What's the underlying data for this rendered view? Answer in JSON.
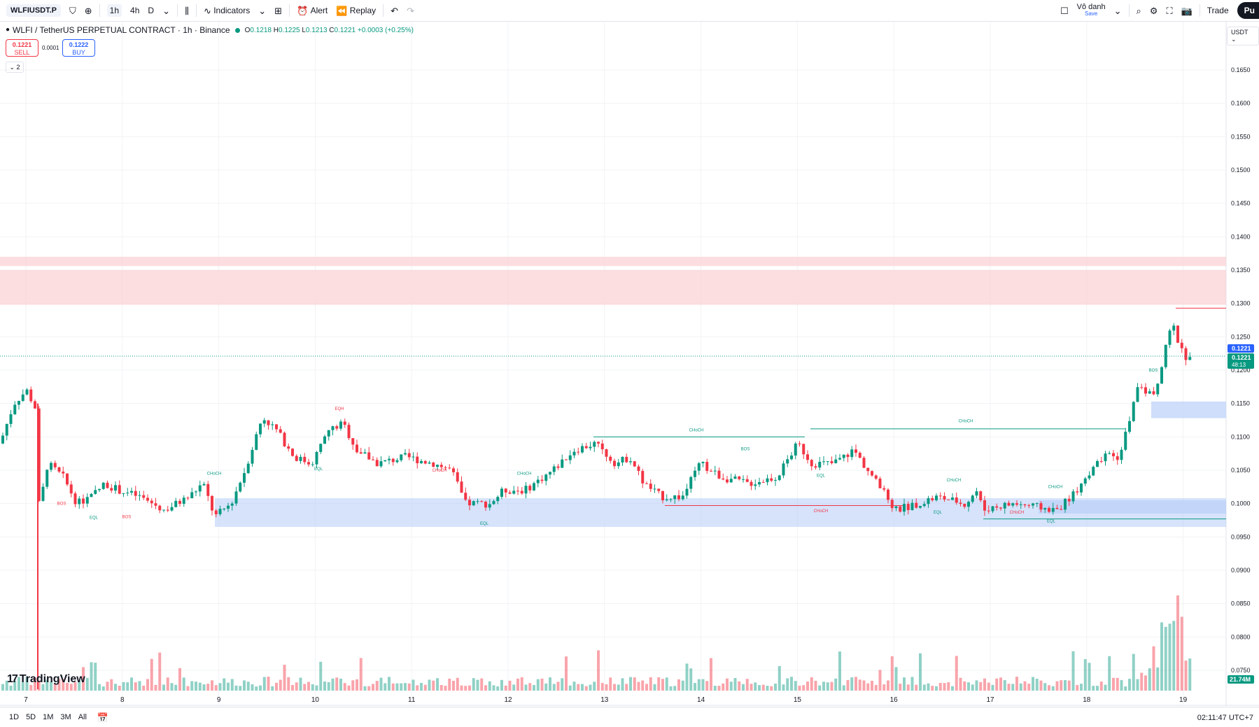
{
  "toolbar": {
    "symbol": "WLFIUSDT.P",
    "timeframes": [
      "1h",
      "4h",
      "D"
    ],
    "indicators_label": "Indicators",
    "alert_label": "Alert",
    "replay_label": "Replay",
    "layout_name": "Vô danh",
    "save_label": "Save",
    "trade_label": "Trade",
    "publish_label": "Pu"
  },
  "legend": {
    "title": "WLFI / TetherUS PERPETUAL CONTRACT · 1h · Binance",
    "open": "0.1218",
    "high": "0.1225",
    "low": "0.1213",
    "close": "0.1221",
    "change": "+0.0003 (+0.25%)"
  },
  "trade": {
    "sell_price": "0.1221",
    "sell_label": "SELL",
    "spread": "0.0001",
    "buy_price": "0.1222",
    "buy_label": "BUY",
    "indicators_count": "2"
  },
  "axis": {
    "currency": "USDT",
    "current_price": "0.1221",
    "current_price_2": "0.1221",
    "countdown": "48:13",
    "volume_label": "21.74M"
  },
  "bottom": {
    "ranges": [
      "1D",
      "5D",
      "1M",
      "3M",
      "All"
    ],
    "clock": "02:11:47 UTC+7"
  },
  "brand": "TradingView",
  "colors": {
    "up": "#089981",
    "down": "#f23645",
    "demand": "#bbd0f8",
    "supply": "#fbd3d6"
  },
  "chart_data": {
    "type": "candlestick",
    "y_ticks": [
      "0.1650",
      "0.1600",
      "0.1550",
      "0.1500",
      "0.1450",
      "0.1400",
      "0.1350",
      "0.1300",
      "0.1250",
      "0.1200",
      "0.1150",
      "0.1100",
      "0.1050",
      "0.1000",
      "0.0950",
      "0.0900",
      "0.0850",
      "0.0800",
      "0.0750"
    ],
    "ylim": [
      0.0705,
      0.1705
    ],
    "x_ticks": [
      "7",
      "8",
      "9",
      "10",
      "11",
      "12",
      "13",
      "14",
      "15",
      "16",
      "17",
      "18",
      "19"
    ],
    "annotations": [
      "CHoCH",
      "CHoCH",
      "CHoCH",
      "CHoCH",
      "CHoCH",
      "CHoCH",
      "CHoCH",
      "CHoCH",
      "CHoCH",
      "BOS",
      "BOS",
      "BOS",
      "BOS",
      "EQL",
      "EQL",
      "EQL",
      "EQL",
      "EQL",
      "EQL",
      "EQH"
    ],
    "supply_zones": [
      [
        0.1356,
        0.137
      ],
      [
        0.1298,
        0.135
      ]
    ],
    "demand_zones": [
      [
        0.0965,
        0.1008
      ],
      [
        0.0985,
        0.1005
      ],
      [
        0.1128,
        0.1153
      ]
    ]
  }
}
